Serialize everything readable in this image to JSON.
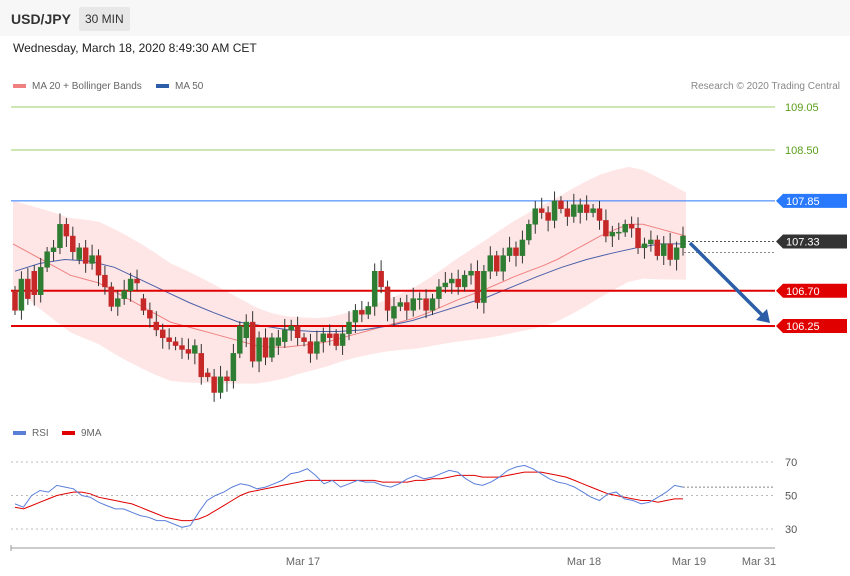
{
  "header": {
    "pair": "USD/JPY",
    "timeframe": "30 MIN",
    "datetime": "Wednesday, March 18, 2020 8:49:30 AM CET",
    "credit": "Research © 2020 Trading Central"
  },
  "legend": {
    "ma20": "MA 20 + Bollinger Bands",
    "ma50": "MA 50",
    "rsi": "RSI",
    "rsi_ma": "9MA"
  },
  "colors": {
    "bull": "#2e7d32",
    "bear": "#c62828",
    "bands": "#ffdede",
    "ma20": "#f08080",
    "ma50": "#4a5fa8",
    "resistance_green": "#9ccc65",
    "resistance_blue": "#2979ff",
    "support_red": "#e00000",
    "arrow": "#2b5ea7",
    "rsi": "#5b7fd9",
    "rsi_ma": "#e00000"
  },
  "chart_data": [
    {
      "type": "candlestick",
      "title": "USD/JPY 30 MIN",
      "y_ticks": [
        "109.05",
        "108.50",
        "107.85",
        "107.33",
        "106.70",
        "106.25"
      ],
      "ylim": [
        105.0,
        109.4
      ],
      "current_price": 107.33,
      "levels": [
        {
          "value": 109.05,
          "label": "109.05",
          "kind": "resistance-minor"
        },
        {
          "value": 108.5,
          "label": "108.50",
          "kind": "resistance-minor"
        },
        {
          "value": 107.85,
          "label": "107.85",
          "kind": "resistance"
        },
        {
          "value": 106.7,
          "label": "106.70",
          "kind": "support"
        },
        {
          "value": 106.25,
          "label": "106.25",
          "kind": "support"
        }
      ],
      "x_ticks": [
        "Mar 17",
        "Mar 18",
        "Mar 19",
        "Mar 31"
      ],
      "forecast": {
        "direction": "down",
        "from": 107.33,
        "to": 106.25
      },
      "candles_close": [
        106.45,
        106.85,
        106.6,
        106.65,
        107.0,
        107.2,
        107.25,
        107.55,
        107.4,
        107.2,
        107.25,
        107.05,
        107.15,
        106.9,
        106.75,
        106.5,
        106.6,
        106.7,
        106.85,
        106.8,
        106.45,
        106.35,
        106.2,
        106.1,
        106.05,
        106.0,
        105.95,
        105.9,
        106.0,
        105.6,
        105.6,
        105.4,
        105.6,
        105.55,
        105.9,
        106.25,
        106.3,
        105.8,
        106.1,
        105.85,
        106.1,
        106.1,
        106.2,
        106.25,
        106.1,
        106.05,
        105.9,
        106.05,
        106.15,
        106.1,
        106.0,
        106.15,
        106.3,
        106.45,
        106.4,
        106.5,
        106.95,
        106.75,
        106.45,
        106.5,
        106.55,
        106.45,
        106.6,
        106.6,
        106.45,
        106.6,
        106.75,
        106.8,
        106.85,
        106.75,
        106.9,
        106.95,
        106.55,
        106.95,
        107.15,
        106.95,
        107.15,
        107.25,
        107.15,
        107.35,
        107.55,
        107.75,
        107.7,
        107.6,
        107.85,
        107.75,
        107.65,
        107.8,
        107.8,
        107.7,
        107.75,
        107.6,
        107.4,
        107.45,
        107.45,
        107.55,
        107.5,
        107.25,
        107.3,
        107.35,
        107.15,
        107.3,
        107.1,
        107.25,
        107.4
      ],
      "candles_open": [
        106.7,
        106.45,
        106.85,
        106.95,
        106.65,
        107.0,
        107.2,
        107.25,
        107.55,
        107.4,
        107.1,
        107.25,
        107.05,
        107.15,
        106.9,
        106.75,
        106.5,
        106.6,
        106.7,
        106.85,
        106.6,
        106.45,
        106.3,
        106.2,
        106.1,
        106.05,
        106.0,
        105.95,
        105.9,
        105.9,
        105.65,
        105.6,
        105.4,
        105.6,
        105.55,
        105.9,
        106.1,
        106.3,
        105.8,
        106.1,
        105.85,
        106.0,
        106.05,
        106.2,
        106.25,
        106.1,
        106.05,
        105.9,
        106.05,
        106.15,
        106.15,
        106.0,
        106.15,
        106.3,
        106.45,
        106.4,
        106.5,
        106.95,
        106.75,
        106.35,
        106.5,
        106.55,
        106.45,
        106.6,
        106.6,
        106.45,
        106.6,
        106.75,
        106.8,
        106.85,
        106.75,
        106.9,
        106.95,
        106.55,
        106.95,
        107.15,
        106.95,
        107.15,
        107.25,
        107.15,
        107.35,
        107.55,
        107.75,
        107.7,
        107.6,
        107.85,
        107.75,
        107.65,
        107.7,
        107.8,
        107.7,
        107.75,
        107.6,
        107.4,
        107.45,
        107.45,
        107.55,
        107.5,
        107.25,
        107.3,
        107.35,
        107.15,
        107.3,
        107.1,
        107.25
      ],
      "ma20": [
        107.3,
        107.2,
        107.1,
        107.0,
        106.9,
        106.85,
        106.8,
        106.7,
        106.6,
        106.5,
        106.4,
        106.3,
        106.25,
        106.2,
        106.15,
        106.1,
        106.05,
        106.0,
        105.98,
        105.98,
        106.0,
        106.02,
        106.05,
        106.1,
        106.15,
        106.2,
        106.25,
        106.3,
        106.35,
        106.42,
        106.5,
        106.58,
        106.65,
        106.72,
        106.8,
        106.88,
        106.95,
        107.02,
        107.1,
        107.2,
        107.3,
        107.4,
        107.48,
        107.55,
        107.55,
        107.5,
        107.45,
        107.4
      ],
      "ma50": [
        106.95,
        107.05,
        107.1,
        107.08,
        107.0,
        106.85,
        106.7,
        106.55,
        106.42,
        106.3,
        106.25,
        106.2,
        106.18,
        106.18,
        106.2,
        106.25,
        106.32,
        106.42,
        106.52,
        106.62,
        106.75,
        106.88,
        107.0,
        107.1,
        107.18,
        107.25,
        107.3,
        107.3
      ]
    },
    {
      "type": "line",
      "title": "RSI",
      "y_ticks": [
        "70",
        "50",
        "30"
      ],
      "ylim": [
        20,
        80
      ],
      "series": [
        {
          "name": "RSI",
          "values": [
            45,
            43,
            50,
            53,
            52,
            56,
            55,
            54,
            50,
            49,
            46,
            44,
            42,
            42,
            40,
            38,
            37,
            35,
            35,
            33,
            31,
            32,
            40,
            47,
            50,
            52,
            55,
            57,
            56,
            54,
            55,
            57,
            59,
            63,
            64,
            66,
            62,
            57,
            59,
            55,
            57,
            59,
            58,
            58,
            56,
            55,
            57,
            60,
            62,
            60,
            61,
            63,
            65,
            64,
            60,
            57,
            56,
            58,
            61,
            65,
            67,
            68,
            66,
            63,
            60,
            58,
            57,
            55,
            52,
            49,
            47,
            51,
            52,
            48,
            47,
            45,
            46,
            49,
            52,
            56,
            55
          ]
        },
        {
          "name": "9MA",
          "values": [
            43,
            42,
            44,
            46,
            48,
            50,
            51,
            52,
            52,
            51,
            49,
            48,
            47,
            46,
            45,
            43,
            41,
            39,
            37,
            36,
            35,
            35,
            36,
            38,
            41,
            44,
            47,
            50,
            52,
            53,
            54,
            55,
            56,
            57,
            58,
            59,
            59,
            59,
            59,
            59,
            59,
            59,
            59,
            59,
            58,
            58,
            58,
            58,
            59,
            59,
            60,
            60,
            61,
            62,
            62,
            62,
            61,
            61,
            61,
            62,
            63,
            64,
            64,
            64,
            63,
            62,
            61,
            59,
            57,
            55,
            53,
            51,
            50,
            49,
            48,
            47,
            47,
            46,
            47,
            48,
            48
          ]
        }
      ]
    }
  ]
}
